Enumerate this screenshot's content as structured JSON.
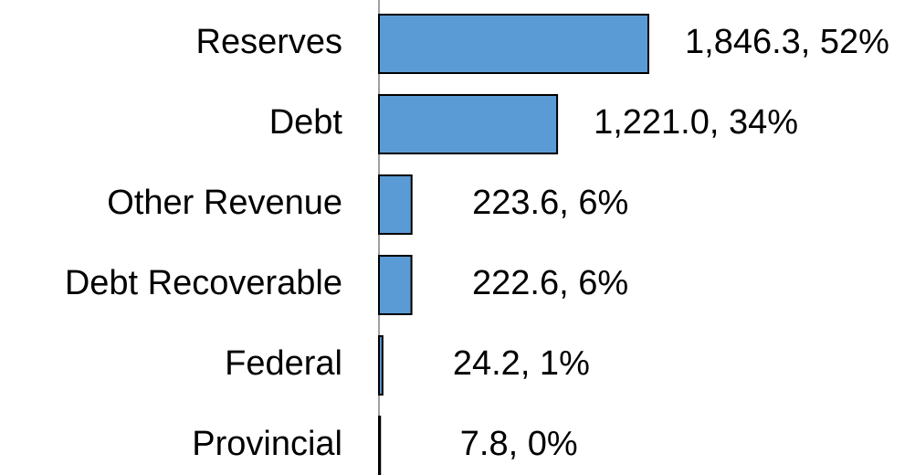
{
  "chart_data": {
    "type": "bar",
    "orientation": "horizontal",
    "categories": [
      "Reserves",
      "Debt",
      "Other Revenue",
      "Debt Recoverable",
      "Federal",
      "Provincial"
    ],
    "values": [
      1846.3,
      1221.0,
      223.6,
      222.6,
      24.2,
      7.8
    ],
    "value_labels": [
      "1,846.3, 52%",
      "1,221.0, 34%",
      "223.6, 6%",
      "222.6, 6%",
      "24.2, 1%",
      "7.8, 0%"
    ],
    "color": "#5b9bd5"
  }
}
